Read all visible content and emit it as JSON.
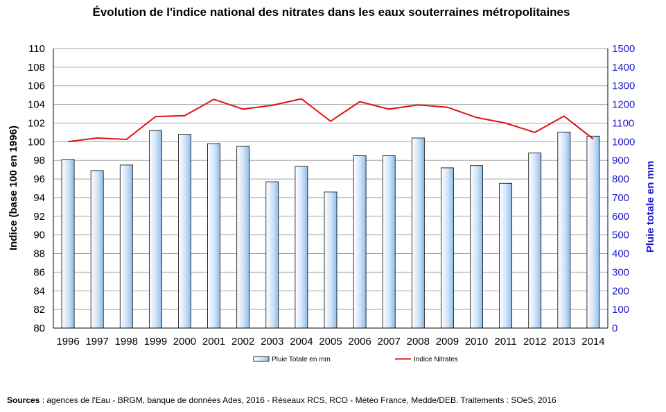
{
  "chart_data": {
    "type": "bar",
    "title": "Évolution de l'indice national des nitrates dans les eaux souterraines métropolitaines",
    "ylabel_left": "Indice (base 100 en 1996)",
    "ylabel_right": "Pluie totale en mm",
    "categories": [
      "1996",
      "1997",
      "1998",
      "1999",
      "2000",
      "2001",
      "2002",
      "2003",
      "2004",
      "2005",
      "2006",
      "2007",
      "2008",
      "2009",
      "2010",
      "2011",
      "2012",
      "2013",
      "2014"
    ],
    "ylim_left": [
      80,
      110
    ],
    "yticks_left": [
      "80",
      "82",
      "84",
      "86",
      "88",
      "90",
      "92",
      "94",
      "96",
      "98",
      "100",
      "102",
      "104",
      "106",
      "108",
      "110"
    ],
    "ylim_right": [
      0,
      1500
    ],
    "yticks_right": [
      "0",
      "100",
      "200",
      "300",
      "400",
      "500",
      "600",
      "700",
      "800",
      "900",
      "1000",
      "1100",
      "1200",
      "1300",
      "1400",
      "1500"
    ],
    "grid": true,
    "legend_position": "bottom",
    "series": [
      {
        "name": "Pluie Totale en mm",
        "type": "bar",
        "axis": "right",
        "values": [
          905,
          845,
          875,
          1060,
          1040,
          990,
          975,
          785,
          868,
          730,
          925,
          925,
          1020,
          860,
          872,
          777,
          940,
          1052,
          1030
        ]
      },
      {
        "name": "Indice Nitrates",
        "type": "line",
        "axis": "left",
        "color": "#dd1111",
        "values": [
          100.0,
          100.4,
          100.25,
          102.7,
          102.8,
          104.55,
          103.5,
          103.9,
          104.6,
          102.2,
          104.3,
          103.5,
          103.95,
          103.7,
          102.6,
          102.0,
          101.0,
          102.75,
          100.3
        ]
      }
    ]
  },
  "footer": {
    "sources_label": "Sources",
    "sources_text": " : agences de l'Eau - BRGM, banque de données Ades, 2016 - Réseaux RCS, RCO - Météo France, Medde/DEB.  Traitements : SOeS, 2016"
  }
}
